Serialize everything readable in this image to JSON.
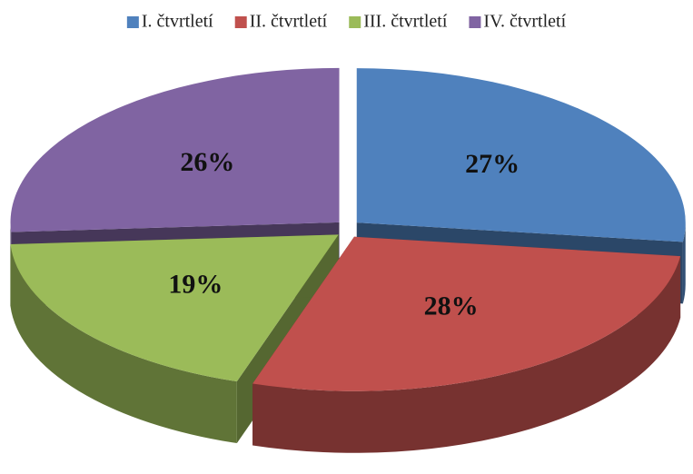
{
  "chart_data": {
    "type": "pie3d",
    "categories": [
      "I. čtvrtletí",
      "II. čtvrtletí",
      "III. čtvrtletí",
      "IV. čtvrtletí"
    ],
    "values": [
      27,
      28,
      19,
      26
    ],
    "value_labels": [
      "27%",
      "28%",
      "19%",
      "26%"
    ],
    "colors": [
      "#4f81bd",
      "#c0504d",
      "#9bbb59",
      "#8064a2"
    ],
    "legend": "top"
  }
}
